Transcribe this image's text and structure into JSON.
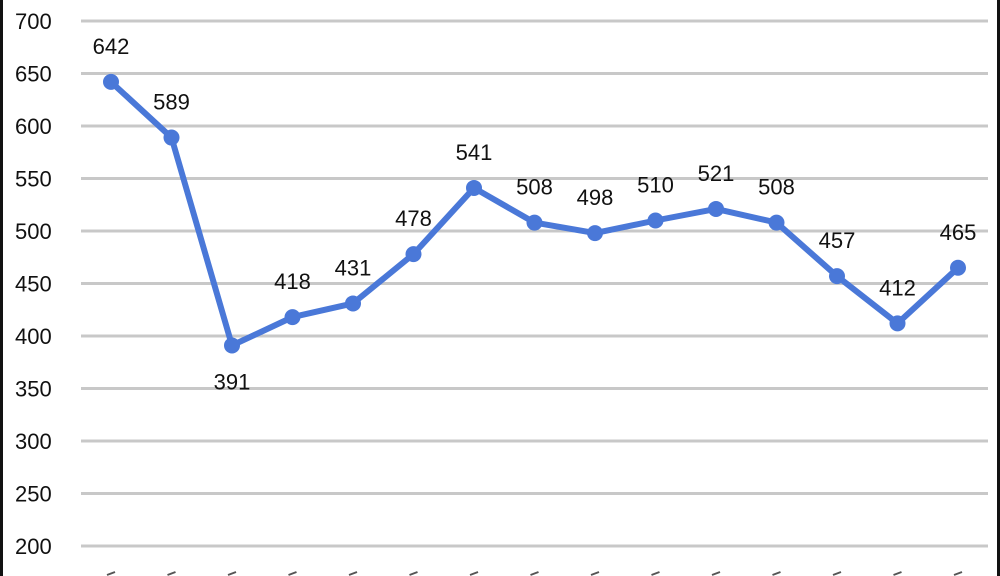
{
  "chart_data": {
    "type": "line",
    "title": "",
    "xlabel": "",
    "ylabel": "",
    "ylim": [
      200,
      700
    ],
    "yticks": [
      200,
      250,
      300,
      350,
      400,
      450,
      500,
      550,
      600,
      650,
      700
    ],
    "grid": true,
    "legend": "none",
    "series": [
      {
        "values": [
          642,
          589,
          391,
          418,
          431,
          478,
          541,
          508,
          498,
          510,
          521,
          508,
          457,
          412,
          465
        ]
      }
    ],
    "colors": {
      "line": "#4a78d8",
      "grid": "#c8c8c8",
      "text": "#111111"
    }
  }
}
